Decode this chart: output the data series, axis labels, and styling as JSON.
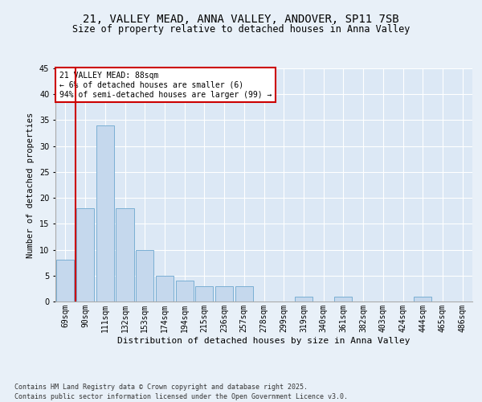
{
  "title1": "21, VALLEY MEAD, ANNA VALLEY, ANDOVER, SP11 7SB",
  "title2": "Size of property relative to detached houses in Anna Valley",
  "xlabel": "Distribution of detached houses by size in Anna Valley",
  "ylabel": "Number of detached properties",
  "categories": [
    "69sqm",
    "90sqm",
    "111sqm",
    "132sqm",
    "153sqm",
    "174sqm",
    "194sqm",
    "215sqm",
    "236sqm",
    "257sqm",
    "278sqm",
    "299sqm",
    "319sqm",
    "340sqm",
    "361sqm",
    "382sqm",
    "403sqm",
    "424sqm",
    "444sqm",
    "465sqm",
    "486sqm"
  ],
  "values": [
    8,
    18,
    34,
    18,
    10,
    5,
    4,
    3,
    3,
    3,
    0,
    0,
    1,
    0,
    1,
    0,
    0,
    0,
    1,
    0,
    0
  ],
  "bar_color": "#c5d8ed",
  "bar_edge_color": "#7aafd4",
  "annotation_line_color": "#cc0000",
  "annotation_box_text": "21 VALLEY MEAD: 88sqm\n← 6% of detached houses are smaller (6)\n94% of semi-detached houses are larger (99) →",
  "ylim": [
    0,
    45
  ],
  "yticks": [
    0,
    5,
    10,
    15,
    20,
    25,
    30,
    35,
    40,
    45
  ],
  "background_color": "#e8f0f8",
  "plot_bg_color": "#dce8f5",
  "footer": "Contains HM Land Registry data © Crown copyright and database right 2025.\nContains public sector information licensed under the Open Government Licence v3.0.",
  "title1_fontsize": 10,
  "title2_fontsize": 8.5,
  "xlabel_fontsize": 8,
  "ylabel_fontsize": 7.5,
  "tick_fontsize": 7,
  "annotation_fontsize": 7,
  "footer_fontsize": 6
}
